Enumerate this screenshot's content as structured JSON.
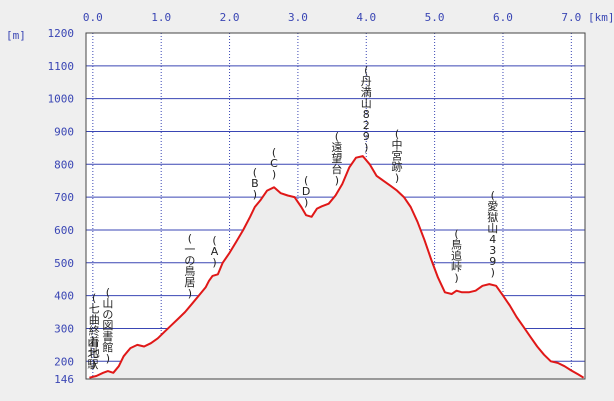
{
  "colors": {
    "background": "#efefef",
    "plot_background": "#ffffff",
    "grid": "#3a46b4",
    "axis_text": "#3a46b4",
    "line": "#e01818",
    "fill": "#ededed",
    "frame": "#444444",
    "annotation_text": "#222222"
  },
  "chart_data": {
    "type": "area",
    "title": "",
    "x_unit_label": "[km]",
    "y_unit_label": "[m]",
    "xlim": [
      -0.1,
      7.2
    ],
    "ylim": [
      146,
      1200
    ],
    "x_ticks": [
      0.0,
      1.0,
      2.0,
      3.0,
      4.0,
      5.0,
      6.0,
      7.0
    ],
    "x_tick_labels": [
      "0.0",
      "1.0",
      "2.0",
      "3.0",
      "4.0",
      "5.0",
      "6.0",
      "7.0"
    ],
    "y_ticks": [
      146,
      200,
      300,
      400,
      500,
      600,
      700,
      800,
      900,
      1000,
      1100,
      1200
    ],
    "y_tick_labels": [
      "146",
      "200",
      "300",
      "400",
      "500",
      "600",
      "700",
      "800",
      "900",
      "1000",
      "1100",
      "1200"
    ],
    "grid": true,
    "series": [
      {
        "x": [
          -0.05,
          0.05,
          0.15,
          0.22,
          0.3,
          0.38,
          0.45,
          0.55,
          0.65,
          0.75,
          0.85,
          0.95,
          1.05,
          1.15,
          1.25,
          1.35,
          1.45,
          1.55,
          1.65,
          1.7,
          1.75,
          1.83,
          1.9,
          2.0,
          2.1,
          2.2,
          2.3,
          2.37,
          2.45,
          2.55,
          2.65,
          2.75,
          2.85,
          2.95,
          3.05,
          3.12,
          3.2,
          3.28,
          3.35,
          3.45,
          3.55,
          3.65,
          3.75,
          3.85,
          3.95,
          4.05,
          4.15,
          4.25,
          4.35,
          4.45,
          4.55,
          4.65,
          4.75,
          4.85,
          4.95,
          5.05,
          5.15,
          5.25,
          5.32,
          5.4,
          5.5,
          5.6,
          5.7,
          5.8,
          5.9,
          6.0,
          6.1,
          6.2,
          6.3,
          6.4,
          6.5,
          6.6,
          6.7,
          6.8,
          6.9,
          7.0,
          7.1,
          7.18
        ],
        "y": [
          150,
          155,
          165,
          170,
          165,
          185,
          215,
          240,
          250,
          245,
          255,
          270,
          290,
          310,
          330,
          350,
          375,
          400,
          425,
          445,
          460,
          465,
          500,
          530,
          565,
          600,
          640,
          670,
          690,
          720,
          730,
          712,
          705,
          700,
          670,
          645,
          640,
          665,
          672,
          680,
          705,
          740,
          790,
          820,
          825,
          800,
          765,
          750,
          735,
          720,
          700,
          670,
          625,
          570,
          510,
          455,
          410,
          405,
          415,
          410,
          410,
          415,
          430,
          435,
          430,
          400,
          370,
          335,
          305,
          275,
          245,
          220,
          200,
          195,
          185,
          172,
          160,
          150
        ]
      }
    ],
    "annotations": [
      {
        "text": "山北駅",
        "x": 0.0
      },
      {
        "text": "(七曲終着地)",
        "x": 0.02
      },
      {
        "text": "(山の図書館)",
        "x": 0.22
      },
      {
        "text": "(一の鳥居)",
        "x": 1.42
      },
      {
        "text": "(A)",
        "x": 1.78
      },
      {
        "text": "(B)",
        "x": 2.37
      },
      {
        "text": "(C)",
        "x": 2.65
      },
      {
        "text": "(D)",
        "x": 3.12
      },
      {
        "text": "(遠望台)",
        "x": 3.57
      },
      {
        "text": "(丹満山829)",
        "x": 4.0
      },
      {
        "text": "(中宮跡)",
        "x": 4.45
      },
      {
        "text": "(鳥追峠)",
        "x": 5.32
      },
      {
        "text": "(愛獄山439)",
        "x": 5.85
      }
    ]
  }
}
